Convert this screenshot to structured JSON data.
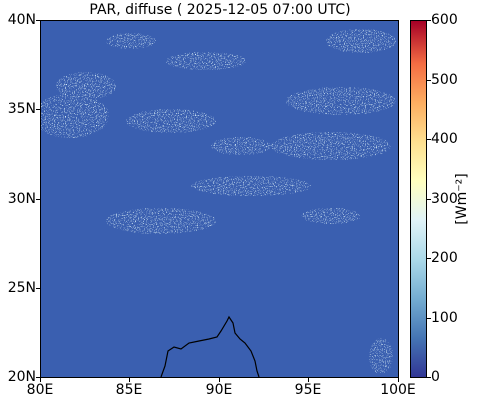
{
  "title": "PAR, diffuse ( 2025-12-05 07:00 UTC)",
  "map": {
    "lon_range": [
      80,
      100
    ],
    "lat_range": [
      20,
      40
    ],
    "background_color": "#3a5fb0",
    "cloud_color": "#a7d3e6"
  },
  "axes": {
    "y_ticks": [
      "40N",
      "35N",
      "30N",
      "25N",
      "20N"
    ],
    "x_ticks": [
      "80E",
      "85E",
      "90E",
      "95E",
      "100E"
    ]
  },
  "colorbar": {
    "label": "[Wm⁻²]",
    "ticks": [
      "600",
      "500",
      "400",
      "300",
      "200",
      "100",
      "0"
    ],
    "range": [
      0,
      600
    ],
    "colormap": "RdYlBu_r"
  }
}
